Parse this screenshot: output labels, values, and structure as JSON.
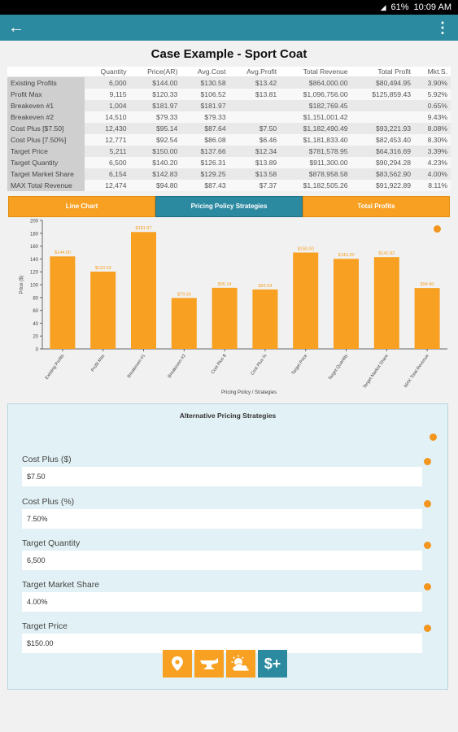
{
  "status": {
    "signal": "◢",
    "battery": "61%",
    "time": "10:09 AM"
  },
  "appbar": {
    "back_icon": "arrow-left-icon",
    "more_icon": "more-vert-icon"
  },
  "page_title": "Case Example - Sport Coat",
  "table": {
    "headers": [
      "",
      "Quantity",
      "Price(AR)",
      "Avg.Cost",
      "Avg.Profit",
      "Total Revenue",
      "Total Profit",
      "Mkt.S."
    ],
    "rows": [
      [
        "Existing Profits",
        "6,000",
        "$144.00",
        "$130.58",
        "$13.42",
        "$864,000.00",
        "$80,494.95",
        "3.90%"
      ],
      [
        "Profit Max",
        "9,115",
        "$120.33",
        "$106.52",
        "$13.81",
        "$1,096,756.00",
        "$125,859.43",
        "5.92%"
      ],
      [
        "Breakeven #1",
        "1,004",
        "$181.97",
        "$181.97",
        "",
        "$182,769.45",
        "",
        "0.65%"
      ],
      [
        "Breakeven #2",
        "14,510",
        "$79.33",
        "$79.33",
        "",
        "$1,151,001.42",
        "",
        "9.43%"
      ],
      [
        "Cost Plus [$7.50]",
        "12,430",
        "$95.14",
        "$87.64",
        "$7.50",
        "$1,182,490.49",
        "$93,221.93",
        "8.08%"
      ],
      [
        "Cost Plus [7.50%]",
        "12,771",
        "$92.54",
        "$86.08",
        "$6.46",
        "$1,181,833.40",
        "$82,453.40",
        "8.30%"
      ],
      [
        "Target Price",
        "5,211",
        "$150.00",
        "$137.66",
        "$12.34",
        "$781,578.95",
        "$64,316.69",
        "3.39%"
      ],
      [
        "Target Quantity",
        "6,500",
        "$140.20",
        "$126.31",
        "$13.89",
        "$911,300.00",
        "$90,294.28",
        "4.23%"
      ],
      [
        "Target Market Share",
        "6,154",
        "$142.83",
        "$129.25",
        "$13.58",
        "$878,958.58",
        "$83,562.90",
        "4.00%"
      ],
      [
        "MAX Total Revenue",
        "12,474",
        "$94.80",
        "$87.43",
        "$7.37",
        "$1,182,505.26",
        "$91,922.89",
        "8.11%"
      ]
    ]
  },
  "tabs": [
    {
      "label": "Line Chart",
      "active": false
    },
    {
      "label": "Pricing Policy Strategies",
      "active": true
    },
    {
      "label": "Total Profits",
      "active": false
    }
  ],
  "chart_data": {
    "type": "bar",
    "categories": [
      "Existing Profits",
      "Profit Max",
      "Breakeven #1",
      "Breakeven #2",
      "Cost Plus $",
      "Cost Plus %",
      "Target Price",
      "Target Quantity",
      "Target Market Share",
      "MAX Total Revenue"
    ],
    "values": [
      144.0,
      120.33,
      181.97,
      79.33,
      95.14,
      92.54,
      150.0,
      140.2,
      142.83,
      94.8
    ],
    "data_labels": [
      "$144.00",
      "$120.33",
      "$181.97",
      "$79.33",
      "$95.14",
      "$92.54",
      "$150.00",
      "$140.20",
      "$142.83",
      "$94.80"
    ],
    "yticks": [
      0,
      20,
      40,
      60,
      80,
      100,
      120,
      140,
      160,
      180,
      200
    ],
    "ylim": [
      0,
      200
    ],
    "ylabel": "Price ($)",
    "xlabel": "Pricing Policy / Strategies",
    "bar_color": "#f7a021"
  },
  "panel": {
    "title": "Alternative Pricing Strategies",
    "fields": [
      {
        "label": "Cost Plus ($)",
        "value": "$7.50"
      },
      {
        "label": "Cost Plus (%)",
        "value": "7.50%"
      },
      {
        "label": "Target Quantity",
        "value": "6,500"
      },
      {
        "label": "Target Market Share",
        "value": "4.00%"
      },
      {
        "label": "Target Price",
        "value": "$150.00"
      }
    ],
    "tools": [
      "location-pin-icon",
      "anvil-icon",
      "weather-icon",
      "dollar-plus-icon"
    ],
    "tool4_text": "$+"
  },
  "colors": {
    "teal": "#2c8aa0",
    "orange": "#f7a021"
  }
}
